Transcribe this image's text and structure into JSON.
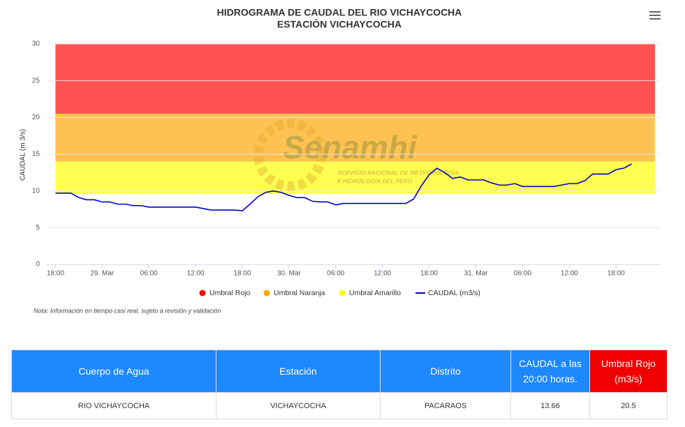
{
  "chart_data": {
    "type": "line",
    "title": "HIDROGRAMA DE CAUDAL DEL RIO VICHAYCOCHA",
    "subtitle": "ESTACIÓN VICHAYCOCHA",
    "y_label": "CAUDAL (m 3/s)",
    "note": "Nota: Información en tiempo casi real, sujeto a revisión y validación",
    "watermark": {
      "name": "Senamhi",
      "line1": "SERVICIO NACIONAL DE METEOROLOGÍA",
      "line2": "E HIDROLOGÍA DEL PERÚ"
    },
    "xlim": [
      -1.2,
      77
    ],
    "ylim": [
      0,
      30
    ],
    "yticks": [
      0,
      5,
      10,
      15,
      20,
      25,
      30
    ],
    "xticks": [
      {
        "value": 0,
        "label": "18:00"
      },
      {
        "value": 6,
        "label": "29. Mar"
      },
      {
        "value": 12,
        "label": "06:00"
      },
      {
        "value": 18,
        "label": "12:00"
      },
      {
        "value": 24,
        "label": "18:00"
      },
      {
        "value": 30,
        "label": "30. Mar"
      },
      {
        "value": 36,
        "label": "06:00"
      },
      {
        "value": 42,
        "label": "12:00"
      },
      {
        "value": 48,
        "label": "18:00"
      },
      {
        "value": 54,
        "label": "31. Mar"
      },
      {
        "value": 60,
        "label": "06:00"
      },
      {
        "value": 66,
        "label": "12:00"
      },
      {
        "value": 72,
        "label": "18:00"
      }
    ],
    "grid": true,
    "bands": [
      {
        "name": "Umbral Rojo",
        "color": "#ff0000",
        "from": 20.5,
        "to": 30
      },
      {
        "name": "Umbral Naranja",
        "color": "#ffa500",
        "from": 14,
        "to": 20.5
      },
      {
        "name": "Umbral Amarillo",
        "color": "#ffff00",
        "from": 9.6,
        "to": 14
      }
    ],
    "x": [
      0,
      1,
      2,
      3,
      4,
      5,
      6,
      7,
      8,
      9,
      10,
      11,
      12,
      13,
      14,
      15,
      16,
      17,
      18,
      19,
      20,
      21,
      22,
      23,
      24,
      25,
      26,
      27,
      28,
      29,
      30,
      31,
      32,
      33,
      34,
      35,
      36,
      37,
      38,
      39,
      40,
      41,
      42,
      43,
      44,
      45,
      46,
      47,
      48,
      49,
      50,
      51,
      52,
      53,
      54,
      55,
      56,
      57,
      58,
      59,
      60,
      61,
      62,
      63,
      64,
      65,
      66,
      67,
      68,
      69,
      70,
      71,
      72,
      73,
      74
    ],
    "series": [
      {
        "name": "CAUDAL (m3/s)",
        "color": "#0000cc",
        "values": [
          9.7,
          9.7,
          9.7,
          9.1,
          8.8,
          8.8,
          8.5,
          8.5,
          8.2,
          8.2,
          8.0,
          8.0,
          7.8,
          7.8,
          7.8,
          7.8,
          7.8,
          7.8,
          7.8,
          7.6,
          7.4,
          7.4,
          7.4,
          7.4,
          7.3,
          8.2,
          9.2,
          9.8,
          10.0,
          9.8,
          9.4,
          9.1,
          9.1,
          8.6,
          8.5,
          8.5,
          8.1,
          8.3,
          8.3,
          8.3,
          8.3,
          8.3,
          8.3,
          8.3,
          8.3,
          8.3,
          8.9,
          10.7,
          12.2,
          13.1,
          12.5,
          11.7,
          11.9,
          11.5,
          11.5,
          11.5,
          11.1,
          10.8,
          10.8,
          11.0,
          10.6,
          10.6,
          10.6,
          10.6,
          10.6,
          10.8,
          11.0,
          11.0,
          11.4,
          12.3,
          12.3,
          12.3,
          12.9,
          13.1,
          13.66
        ]
      }
    ]
  },
  "table": {
    "headers": [
      "Cuerpo de Agua",
      "Estación",
      "Distrito",
      "CAUDAL a las 20:00 horas.",
      "Umbral Rojo (m3/s)"
    ],
    "rows": [
      [
        "RIO VICHAYCOCHA",
        "VICHAYCOCHA",
        "PACARAOS",
        "13.66",
        "20.5"
      ]
    ]
  }
}
